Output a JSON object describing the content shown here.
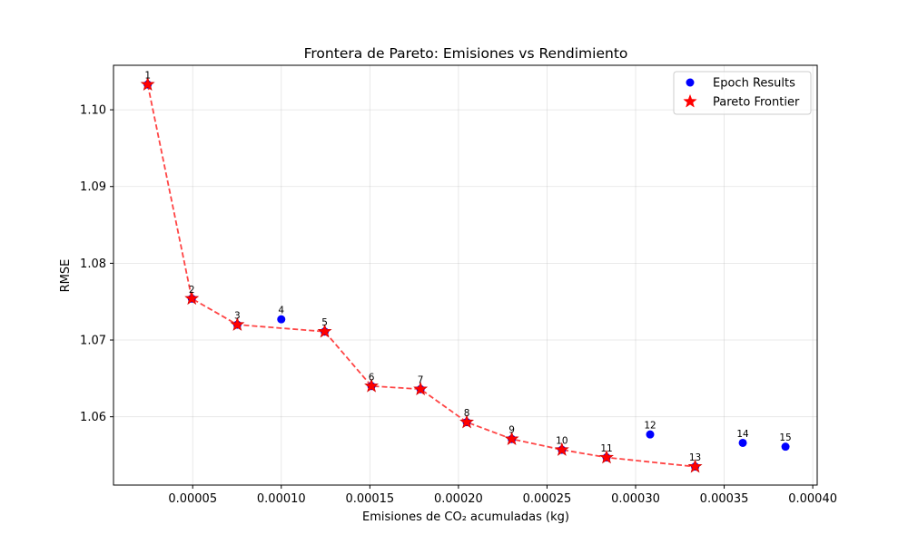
{
  "chart_data": {
    "type": "scatter",
    "title": "Frontera de Pareto: Emisiones vs Rendimiento",
    "xlabel": "Emisiones de CO₂ acumuladas (kg)",
    "ylabel": "RMSE",
    "xlim": [
      5.3e-06,
      0.0004025
    ],
    "ylim": [
      1.0511,
      1.1058
    ],
    "x_ticks": [
      5e-05,
      0.0001,
      0.00015,
      0.0002,
      0.00025,
      0.0003,
      0.00035,
      0.0004
    ],
    "x_tick_labels": [
      "0.00005",
      "0.00010",
      "0.00015",
      "0.00020",
      "0.00025",
      "0.00030",
      "0.00035",
      "0.00040"
    ],
    "y_ticks": [
      1.06,
      1.07,
      1.08,
      1.09,
      1.1
    ],
    "y_tick_labels": [
      "1.06",
      "1.07",
      "1.08",
      "1.09",
      "1.10"
    ],
    "grid": true,
    "legend_position": "top-right",
    "series": [
      {
        "name": "Epoch Results",
        "marker": "circle",
        "color": "#0000ff",
        "points": [
          {
            "label": "1",
            "x": 2.46e-05,
            "y": 1.1033
          },
          {
            "label": "2",
            "x": 4.95e-05,
            "y": 1.0754
          },
          {
            "label": "3",
            "x": 7.52e-05,
            "y": 1.072
          },
          {
            "label": "4",
            "x": 0.0001,
            "y": 1.0727
          },
          {
            "label": "5",
            "x": 0.0001245,
            "y": 1.0711
          },
          {
            "label": "6",
            "x": 0.0001509,
            "y": 1.064
          },
          {
            "label": "7",
            "x": 0.0001786,
            "y": 1.0636
          },
          {
            "label": "8",
            "x": 0.0002047,
            "y": 1.0593
          },
          {
            "label": "9",
            "x": 0.0002301,
            "y": 1.0571
          },
          {
            "label": "10",
            "x": 0.0002584,
            "y": 1.0557
          },
          {
            "label": "11",
            "x": 0.0002836,
            "y": 1.0547
          },
          {
            "label": "12",
            "x": 0.0003082,
            "y": 1.0577
          },
          {
            "label": "13",
            "x": 0.0003336,
            "y": 1.0535
          },
          {
            "label": "14",
            "x": 0.0003605,
            "y": 1.0566
          },
          {
            "label": "15",
            "x": 0.0003846,
            "y": 1.0561
          }
        ]
      },
      {
        "name": "Pareto Frontier",
        "marker": "star",
        "color": "#ff0000",
        "line_style": "dashed",
        "line_color": "#ff4444",
        "point_labels": [
          "1",
          "2",
          "3",
          "5",
          "6",
          "7",
          "8",
          "9",
          "10",
          "11",
          "13"
        ]
      }
    ]
  }
}
